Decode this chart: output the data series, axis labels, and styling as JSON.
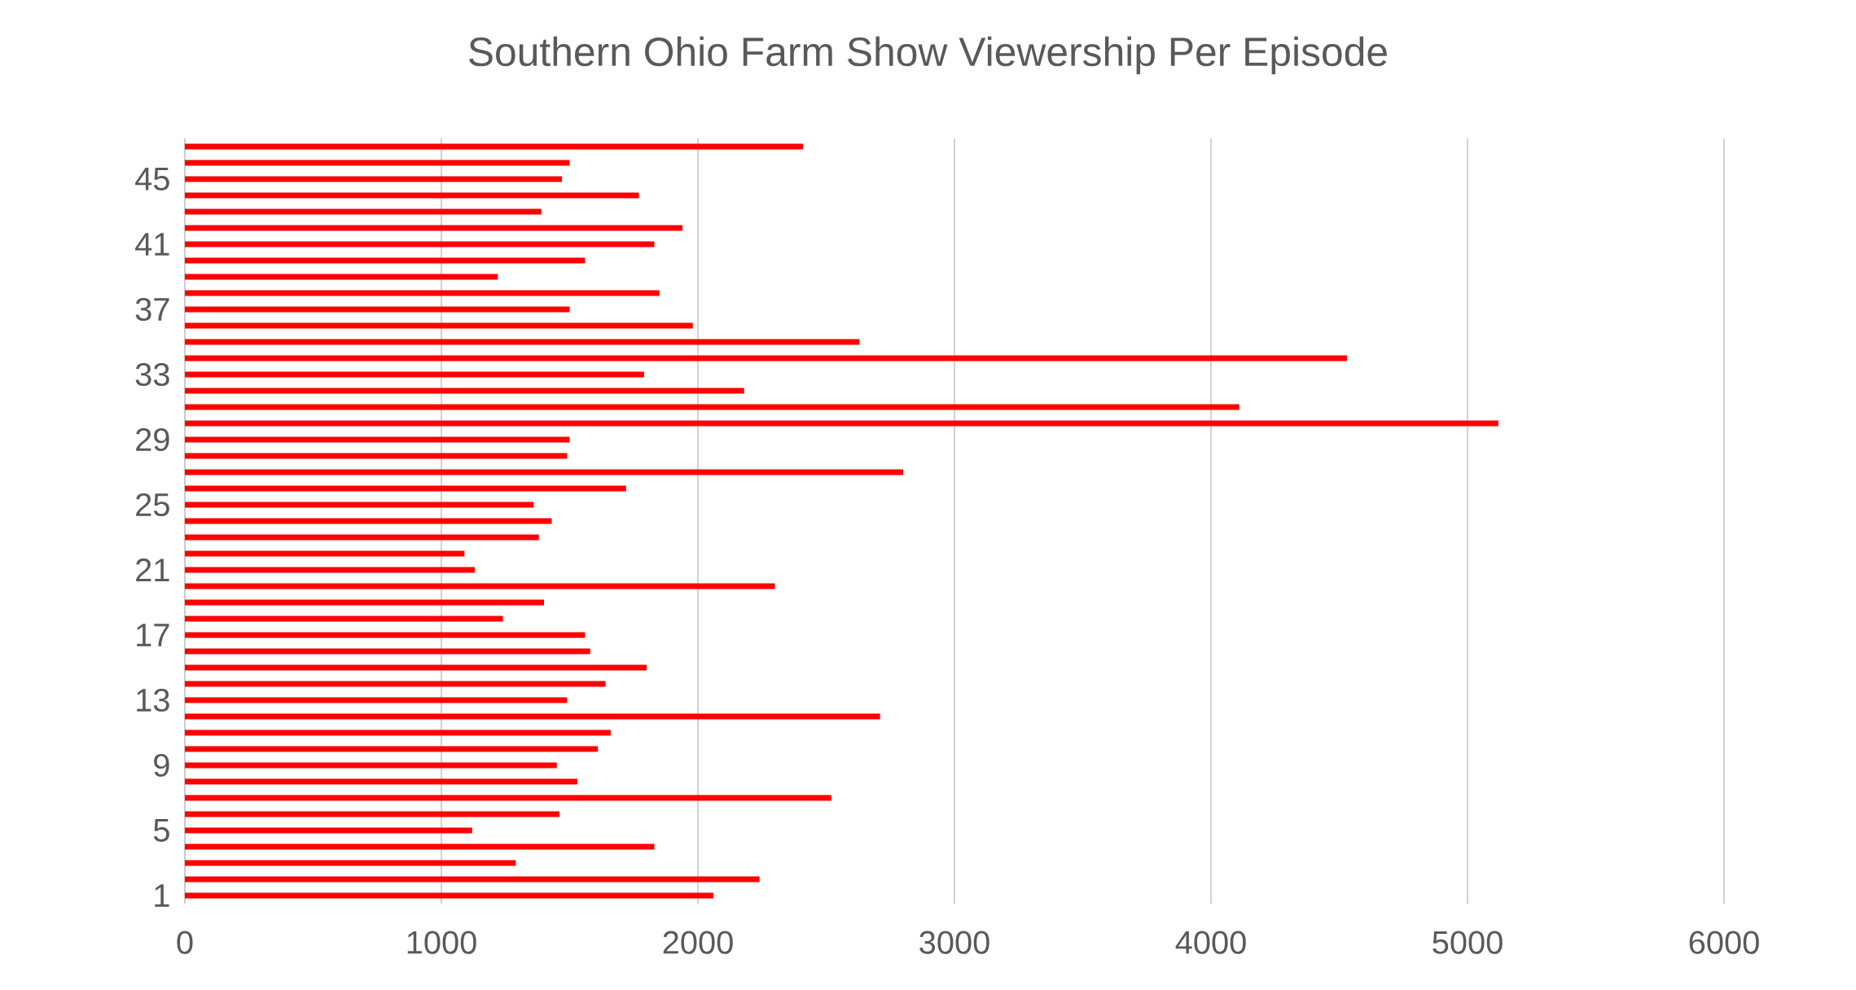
{
  "chart_data": {
    "type": "bar",
    "orientation": "horizontal",
    "title": "Southern Ohio Farm Show Viewership Per Episode",
    "categories": [
      null,
      null,
      "45",
      null,
      null,
      null,
      "41",
      null,
      null,
      null,
      "37",
      null,
      null,
      null,
      "33",
      null,
      null,
      null,
      "29",
      null,
      null,
      null,
      "25",
      null,
      null,
      null,
      "21",
      null,
      null,
      null,
      "17",
      null,
      null,
      null,
      "13",
      null,
      null,
      null,
      "9",
      null,
      null,
      null,
      "5",
      null,
      null,
      null,
      "1"
    ],
    "values": [
      2410,
      1500,
      1470,
      1770,
      1390,
      1940,
      1830,
      1560,
      1220,
      1850,
      1500,
      1980,
      2630,
      4530,
      1790,
      2180,
      4110,
      5120,
      1500,
      1490,
      2800,
      1720,
      1360,
      1430,
      1380,
      1090,
      1130,
      2300,
      1400,
      1240,
      1560,
      1580,
      1800,
      1640,
      1490,
      2710,
      1660,
      1610,
      1450,
      1530,
      2520,
      1460,
      1120,
      1830,
      1290,
      2240,
      2060
    ],
    "color": "#ff0000",
    "xlim": [
      0,
      6000
    ],
    "xticks": [
      0,
      1000,
      2000,
      3000,
      4000,
      5000,
      6000
    ],
    "grid": "x"
  }
}
